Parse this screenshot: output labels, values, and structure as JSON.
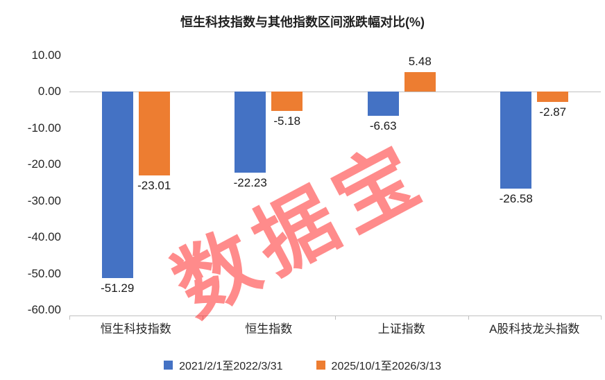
{
  "watermark": {
    "text": "数据宝",
    "color": "#ff0000"
  },
  "colors": {
    "axis_line": "#bfbfbf",
    "tick_text": "#262626",
    "value_label_text": "#1a1a1a",
    "series1": "#4472c4",
    "series2": "#ed7d31"
  },
  "chart_data": {
    "type": "bar",
    "title": "恒生科技指数与其他指数区间涨跌幅对比(%)",
    "categories": [
      "恒生科技指数",
      "恒生指数",
      "上证指数",
      "A股科技龙头指数"
    ],
    "series": [
      {
        "name": "2021/2/1至2022/3/31",
        "color": "#4472c4",
        "values": [
          -51.29,
          -22.23,
          -6.63,
          -26.58
        ]
      },
      {
        "name": "2025/10/1至2026/3/13",
        "color": "#ed7d31",
        "values": [
          -23.01,
          -5.18,
          5.48,
          -2.87
        ]
      }
    ],
    "ylim": [
      -60,
      10
    ],
    "ytick_values": [
      10,
      0,
      -10,
      -20,
      -30,
      -40,
      -50,
      -60
    ],
    "ytick_labels": [
      "10.00",
      "0.00",
      "-10.00",
      "-20.00",
      "-30.00",
      "-40.00",
      "-50.00",
      "-60.00"
    ],
    "grid": false,
    "legend_position": "bottom",
    "value_labels_shown": true
  }
}
